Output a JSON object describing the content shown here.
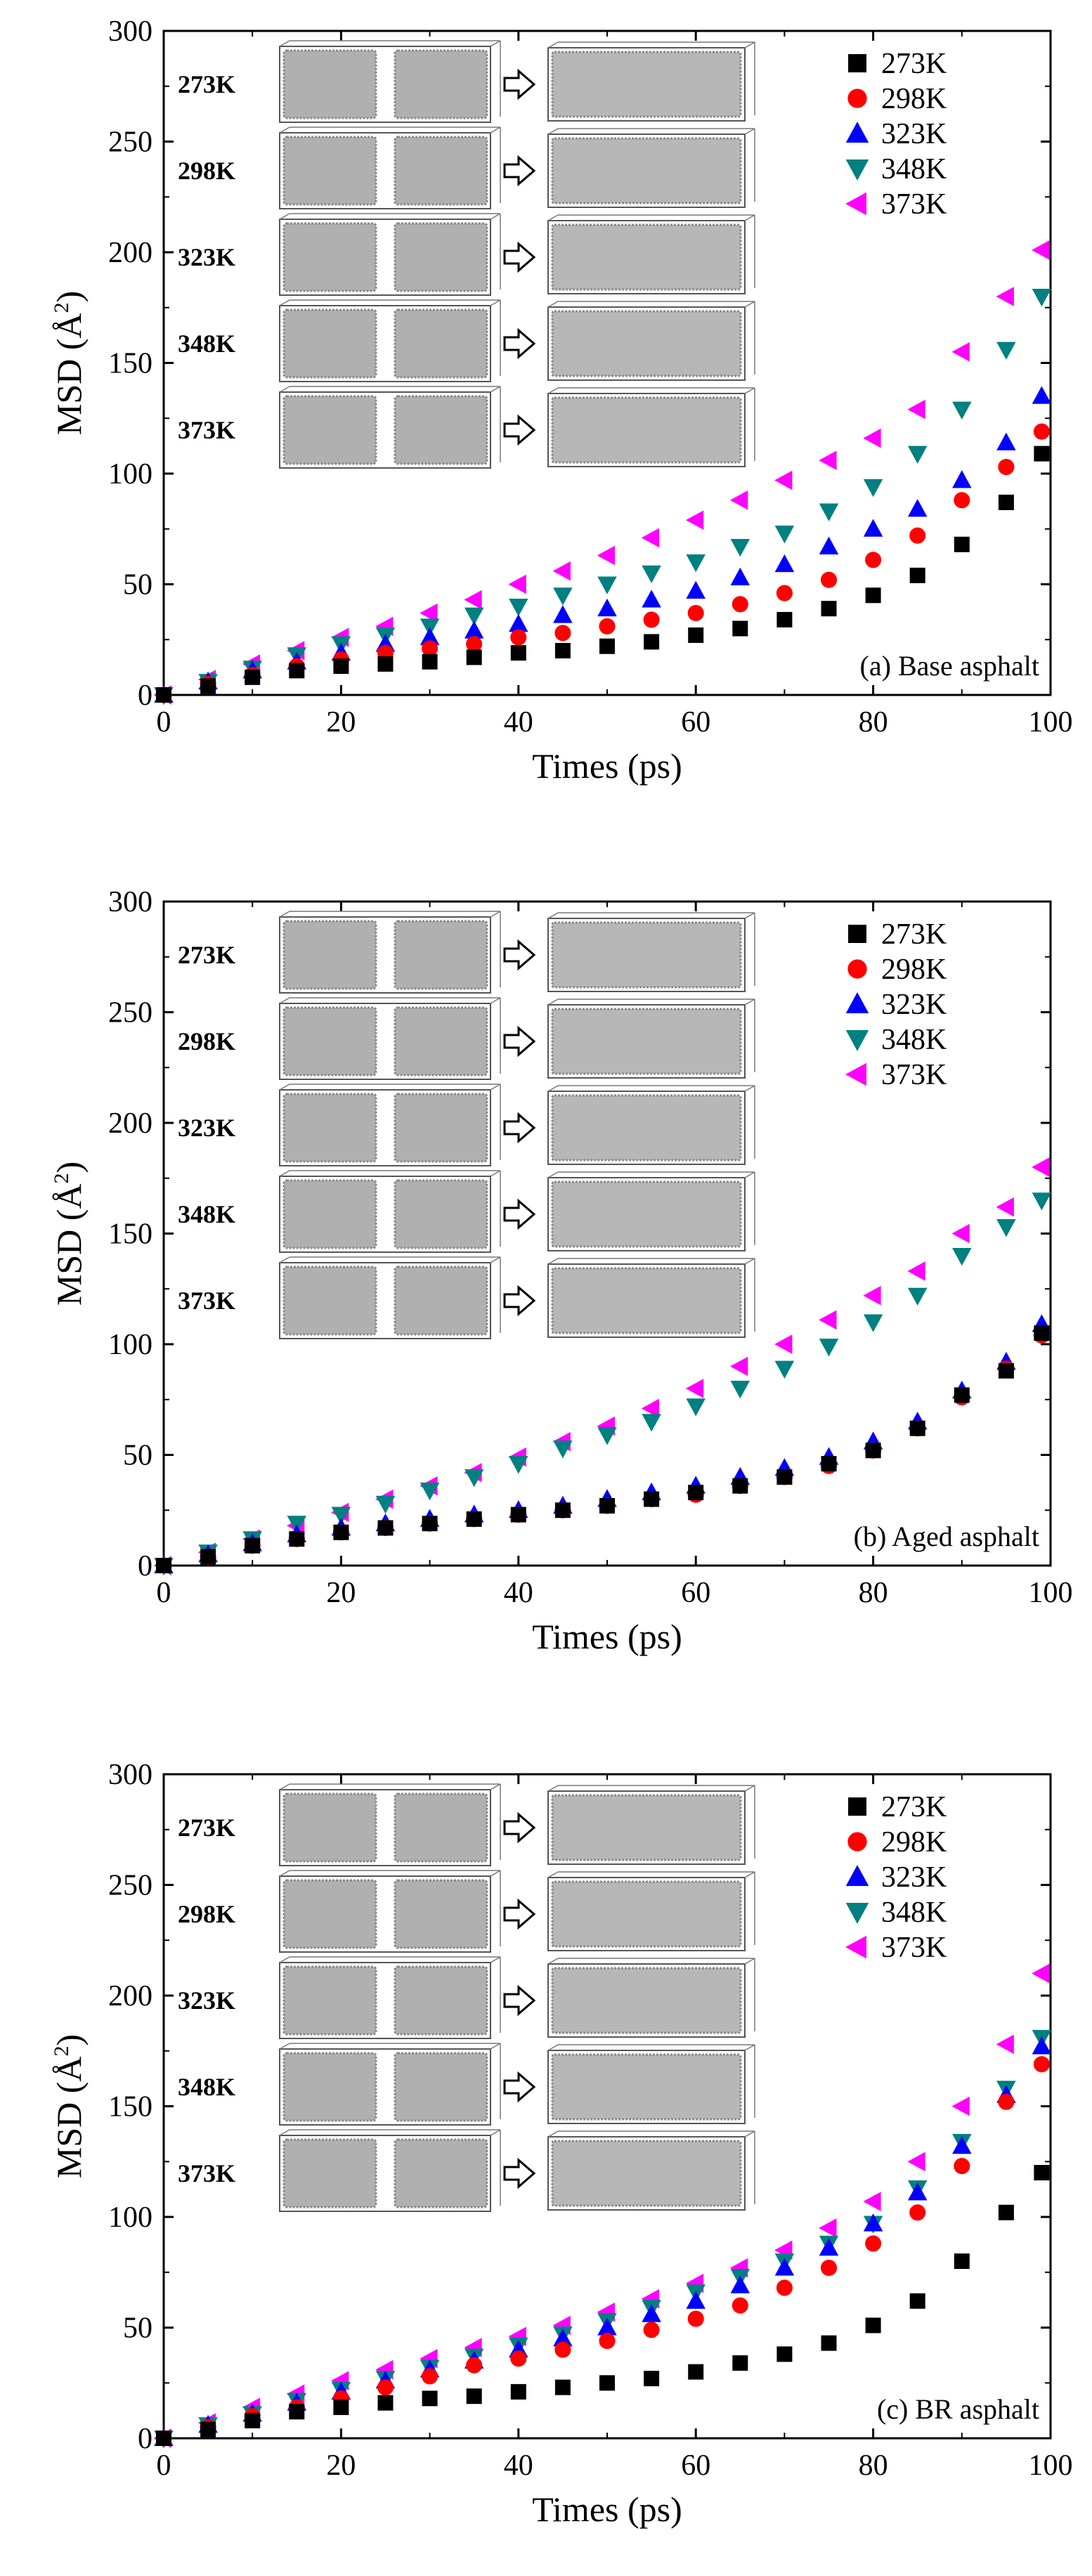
{
  "legend_labels": [
    "273K",
    "298K",
    "323K",
    "348K",
    "373K"
  ],
  "colors": {
    "273K": "#000000",
    "298K": "#ff0000",
    "323K": "#0000ff",
    "348K": "#008080",
    "373K": "#ff00ff"
  },
  "markers": {
    "273K": "square",
    "298K": "circle",
    "323K": "triangle-up",
    "348K": "triangle-down",
    "373K": "triangle-left"
  },
  "inset_labels": [
    "273K",
    "298K",
    "323K",
    "348K",
    "373K"
  ],
  "chart_data": [
    {
      "type": "scatter",
      "annotation": "(a) Base asphalt",
      "xlabel": "Times (ps)",
      "ylabel": "MSD (Å²)",
      "xlim": [
        0,
        100
      ],
      "ylim": [
        0,
        300
      ],
      "xticks": [
        0,
        20,
        40,
        60,
        80,
        100
      ],
      "yticks": [
        0,
        50,
        100,
        150,
        200,
        250,
        300
      ],
      "legend_position": "top-right",
      "x": [
        0,
        5,
        10,
        15,
        20,
        25,
        30,
        35,
        40,
        45,
        50,
        55,
        60,
        65,
        70,
        75,
        80,
        85,
        90,
        95,
        99
      ],
      "series": [
        {
          "name": "273K",
          "values": [
            0,
            4,
            8,
            11,
            13,
            14,
            15,
            17,
            19,
            20,
            22,
            24,
            27,
            30,
            34,
            39,
            45,
            54,
            68,
            87,
            109
          ]
        },
        {
          "name": "298K",
          "values": [
            0,
            5,
            9,
            13,
            16,
            19,
            21,
            23,
            26,
            28,
            31,
            34,
            37,
            41,
            46,
            52,
            61,
            72,
            88,
            103,
            119
          ]
        },
        {
          "name": "323K",
          "values": [
            0,
            6,
            11,
            15,
            19,
            23,
            26,
            29,
            32,
            36,
            39,
            43,
            47,
            53,
            59,
            67,
            75,
            84,
            97,
            114,
            135
          ]
        },
        {
          "name": "348K",
          "values": [
            0,
            6,
            12,
            18,
            23,
            27,
            31,
            36,
            40,
            45,
            50,
            55,
            60,
            67,
            73,
            83,
            94,
            109,
            129,
            156,
            180
          ]
        },
        {
          "name": "373K",
          "values": [
            0,
            7,
            14,
            20,
            26,
            31,
            37,
            43,
            50,
            56,
            63,
            71,
            79,
            88,
            97,
            106,
            116,
            129,
            155,
            180,
            201
          ]
        }
      ]
    },
    {
      "type": "scatter",
      "annotation": "(b) Aged asphalt",
      "xlabel": "Times (ps)",
      "ylabel": "MSD (Å²)",
      "xlim": [
        0,
        100
      ],
      "ylim": [
        0,
        300
      ],
      "xticks": [
        0,
        20,
        40,
        60,
        80,
        100
      ],
      "yticks": [
        0,
        50,
        100,
        150,
        200,
        250,
        300
      ],
      "legend_position": "top-right",
      "x": [
        0,
        5,
        10,
        15,
        20,
        25,
        30,
        35,
        40,
        45,
        50,
        55,
        60,
        65,
        70,
        75,
        80,
        85,
        90,
        95,
        99
      ],
      "series": [
        {
          "name": "273K",
          "values": [
            0,
            4,
            9,
            12,
            15,
            17,
            19,
            21,
            23,
            25,
            27,
            30,
            33,
            36,
            40,
            46,
            52,
            62,
            77,
            88,
            105
          ]
        },
        {
          "name": "298K",
          "values": [
            0,
            4,
            9,
            12,
            15,
            17,
            19,
            21,
            23,
            25,
            27,
            30,
            32,
            36,
            40,
            45,
            52,
            62,
            76,
            89,
            104
          ]
        },
        {
          "name": "323K",
          "values": [
            0,
            5,
            10,
            14,
            17,
            19,
            21,
            23,
            25,
            27,
            30,
            33,
            36,
            40,
            44,
            49,
            56,
            65,
            79,
            92,
            109
          ]
        },
        {
          "name": "348K",
          "values": [
            0,
            6,
            12,
            19,
            23,
            28,
            34,
            40,
            46,
            53,
            59,
            65,
            72,
            80,
            89,
            99,
            110,
            122,
            140,
            153,
            165
          ]
        },
        {
          "name": "373K",
          "values": [
            0,
            6,
            12,
            18,
            24,
            30,
            36,
            42,
            49,
            56,
            63,
            71,
            80,
            90,
            100,
            111,
            122,
            133,
            150,
            162,
            180
          ]
        }
      ]
    },
    {
      "type": "scatter",
      "annotation": "(c) BR asphalt",
      "xlabel": "Times (ps)",
      "ylabel": "MSD (Å²)",
      "xlim": [
        0,
        100
      ],
      "ylim": [
        0,
        300
      ],
      "xticks": [
        0,
        20,
        40,
        60,
        80,
        100
      ],
      "yticks": [
        0,
        50,
        100,
        150,
        200,
        250,
        300
      ],
      "legend_position": "top-right",
      "x": [
        0,
        5,
        10,
        15,
        20,
        25,
        30,
        35,
        40,
        45,
        50,
        55,
        60,
        65,
        70,
        75,
        80,
        85,
        90,
        95,
        99
      ],
      "series": [
        {
          "name": "273K",
          "values": [
            0,
            4,
            8,
            12,
            14,
            16,
            18,
            19,
            21,
            23,
            25,
            27,
            30,
            34,
            38,
            43,
            51,
            62,
            80,
            102,
            120
          ]
        },
        {
          "name": "298K",
          "values": [
            0,
            5,
            10,
            14,
            18,
            23,
            28,
            33,
            36,
            40,
            44,
            49,
            54,
            60,
            68,
            77,
            88,
            102,
            123,
            152,
            169
          ]
        },
        {
          "name": "323K",
          "values": [
            0,
            6,
            11,
            16,
            21,
            26,
            31,
            35,
            40,
            45,
            50,
            56,
            62,
            69,
            77,
            86,
            97,
            111,
            132,
            155,
            177
          ]
        },
        {
          "name": "348K",
          "values": [
            0,
            6,
            11,
            17,
            22,
            27,
            32,
            37,
            42,
            47,
            53,
            59,
            66,
            73,
            80,
            88,
            97,
            113,
            134,
            158,
            181
          ]
        },
        {
          "name": "373K",
          "values": [
            0,
            7,
            14,
            20,
            26,
            31,
            36,
            41,
            46,
            51,
            57,
            63,
            70,
            77,
            85,
            95,
            107,
            125,
            150,
            178,
            210
          ]
        }
      ]
    }
  ]
}
